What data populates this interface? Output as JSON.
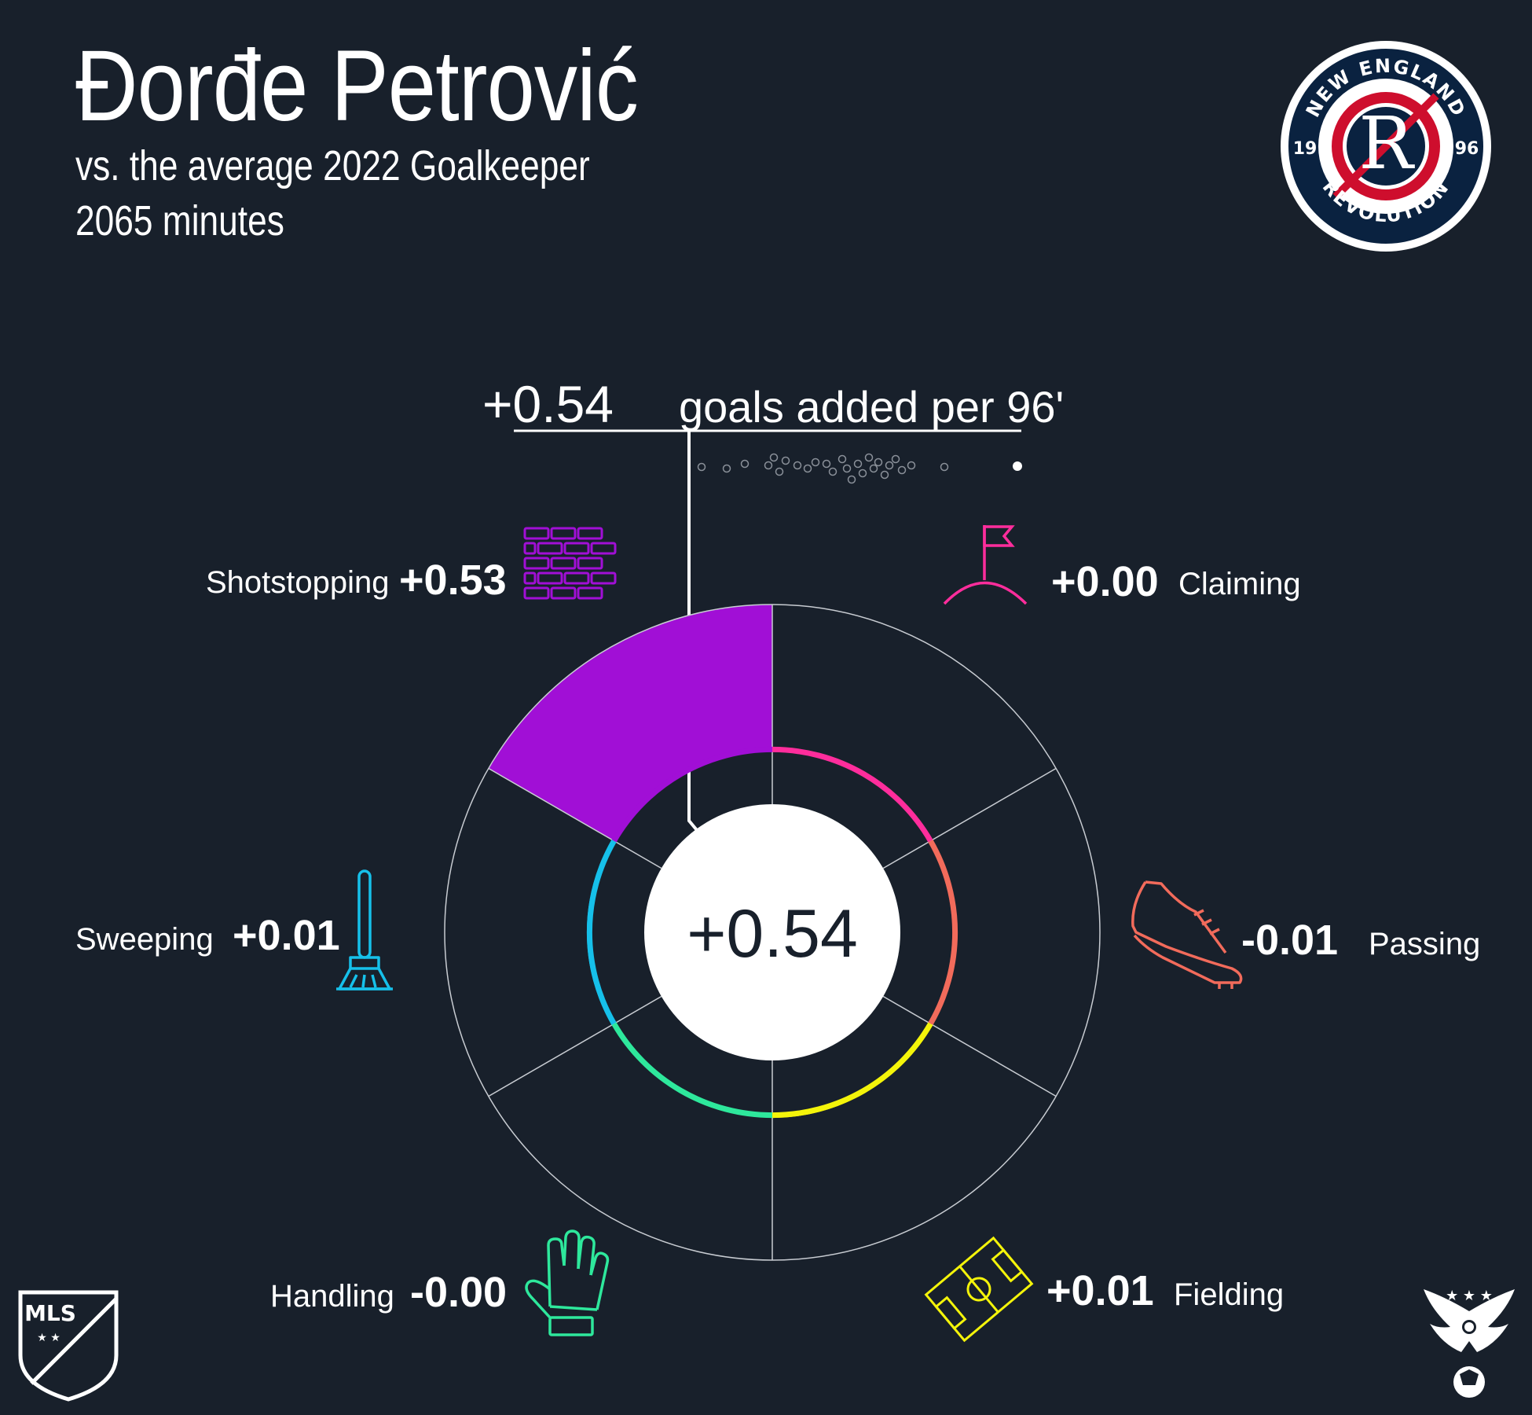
{
  "header": {
    "player_name": "Đorđe Petrović",
    "subtitle_line1": "vs. the average 2022 Goalkeeper",
    "subtitle_line2": "2065 minutes"
  },
  "team_logo": {
    "top_text": "NEW ENGLAND",
    "bottom_text": "REVOLUTION",
    "year_left": "19",
    "year_right": "96",
    "color_navy": "#0a2240",
    "color_red": "#ce0e2d"
  },
  "league_logo": {
    "text": "MLS"
  },
  "chart_data": {
    "type": "radial-bar",
    "total": {
      "value": "+0.54",
      "label": "goals added per 96'"
    },
    "center_value": "+0.54",
    "range": [
      -0.2,
      0.53
    ],
    "categories": [
      {
        "name": "Claiming",
        "value_text": "+0.00",
        "value": 0.0,
        "color": "#ff2d9c",
        "icon": "corner-flag-icon"
      },
      {
        "name": "Passing",
        "value_text": "-0.01",
        "value": -0.01,
        "color": "#f26b5b",
        "icon": "boot-icon"
      },
      {
        "name": "Fielding",
        "value_text": "+0.01",
        "value": 0.01,
        "color": "#f4f40a",
        "icon": "pitch-icon"
      },
      {
        "name": "Handling",
        "value_text": "-0.00",
        "value": -0.004,
        "color": "#2ee89c",
        "icon": "glove-icon"
      },
      {
        "name": "Sweeping",
        "value_text": "+0.01",
        "value": 0.01,
        "color": "#16c0ea",
        "icon": "broom-icon"
      },
      {
        "name": "Shotstopping",
        "value_text": "+0.53",
        "value": 0.53,
        "color": "#a10fd6",
        "icon": "brick-wall-icon"
      }
    ]
  }
}
